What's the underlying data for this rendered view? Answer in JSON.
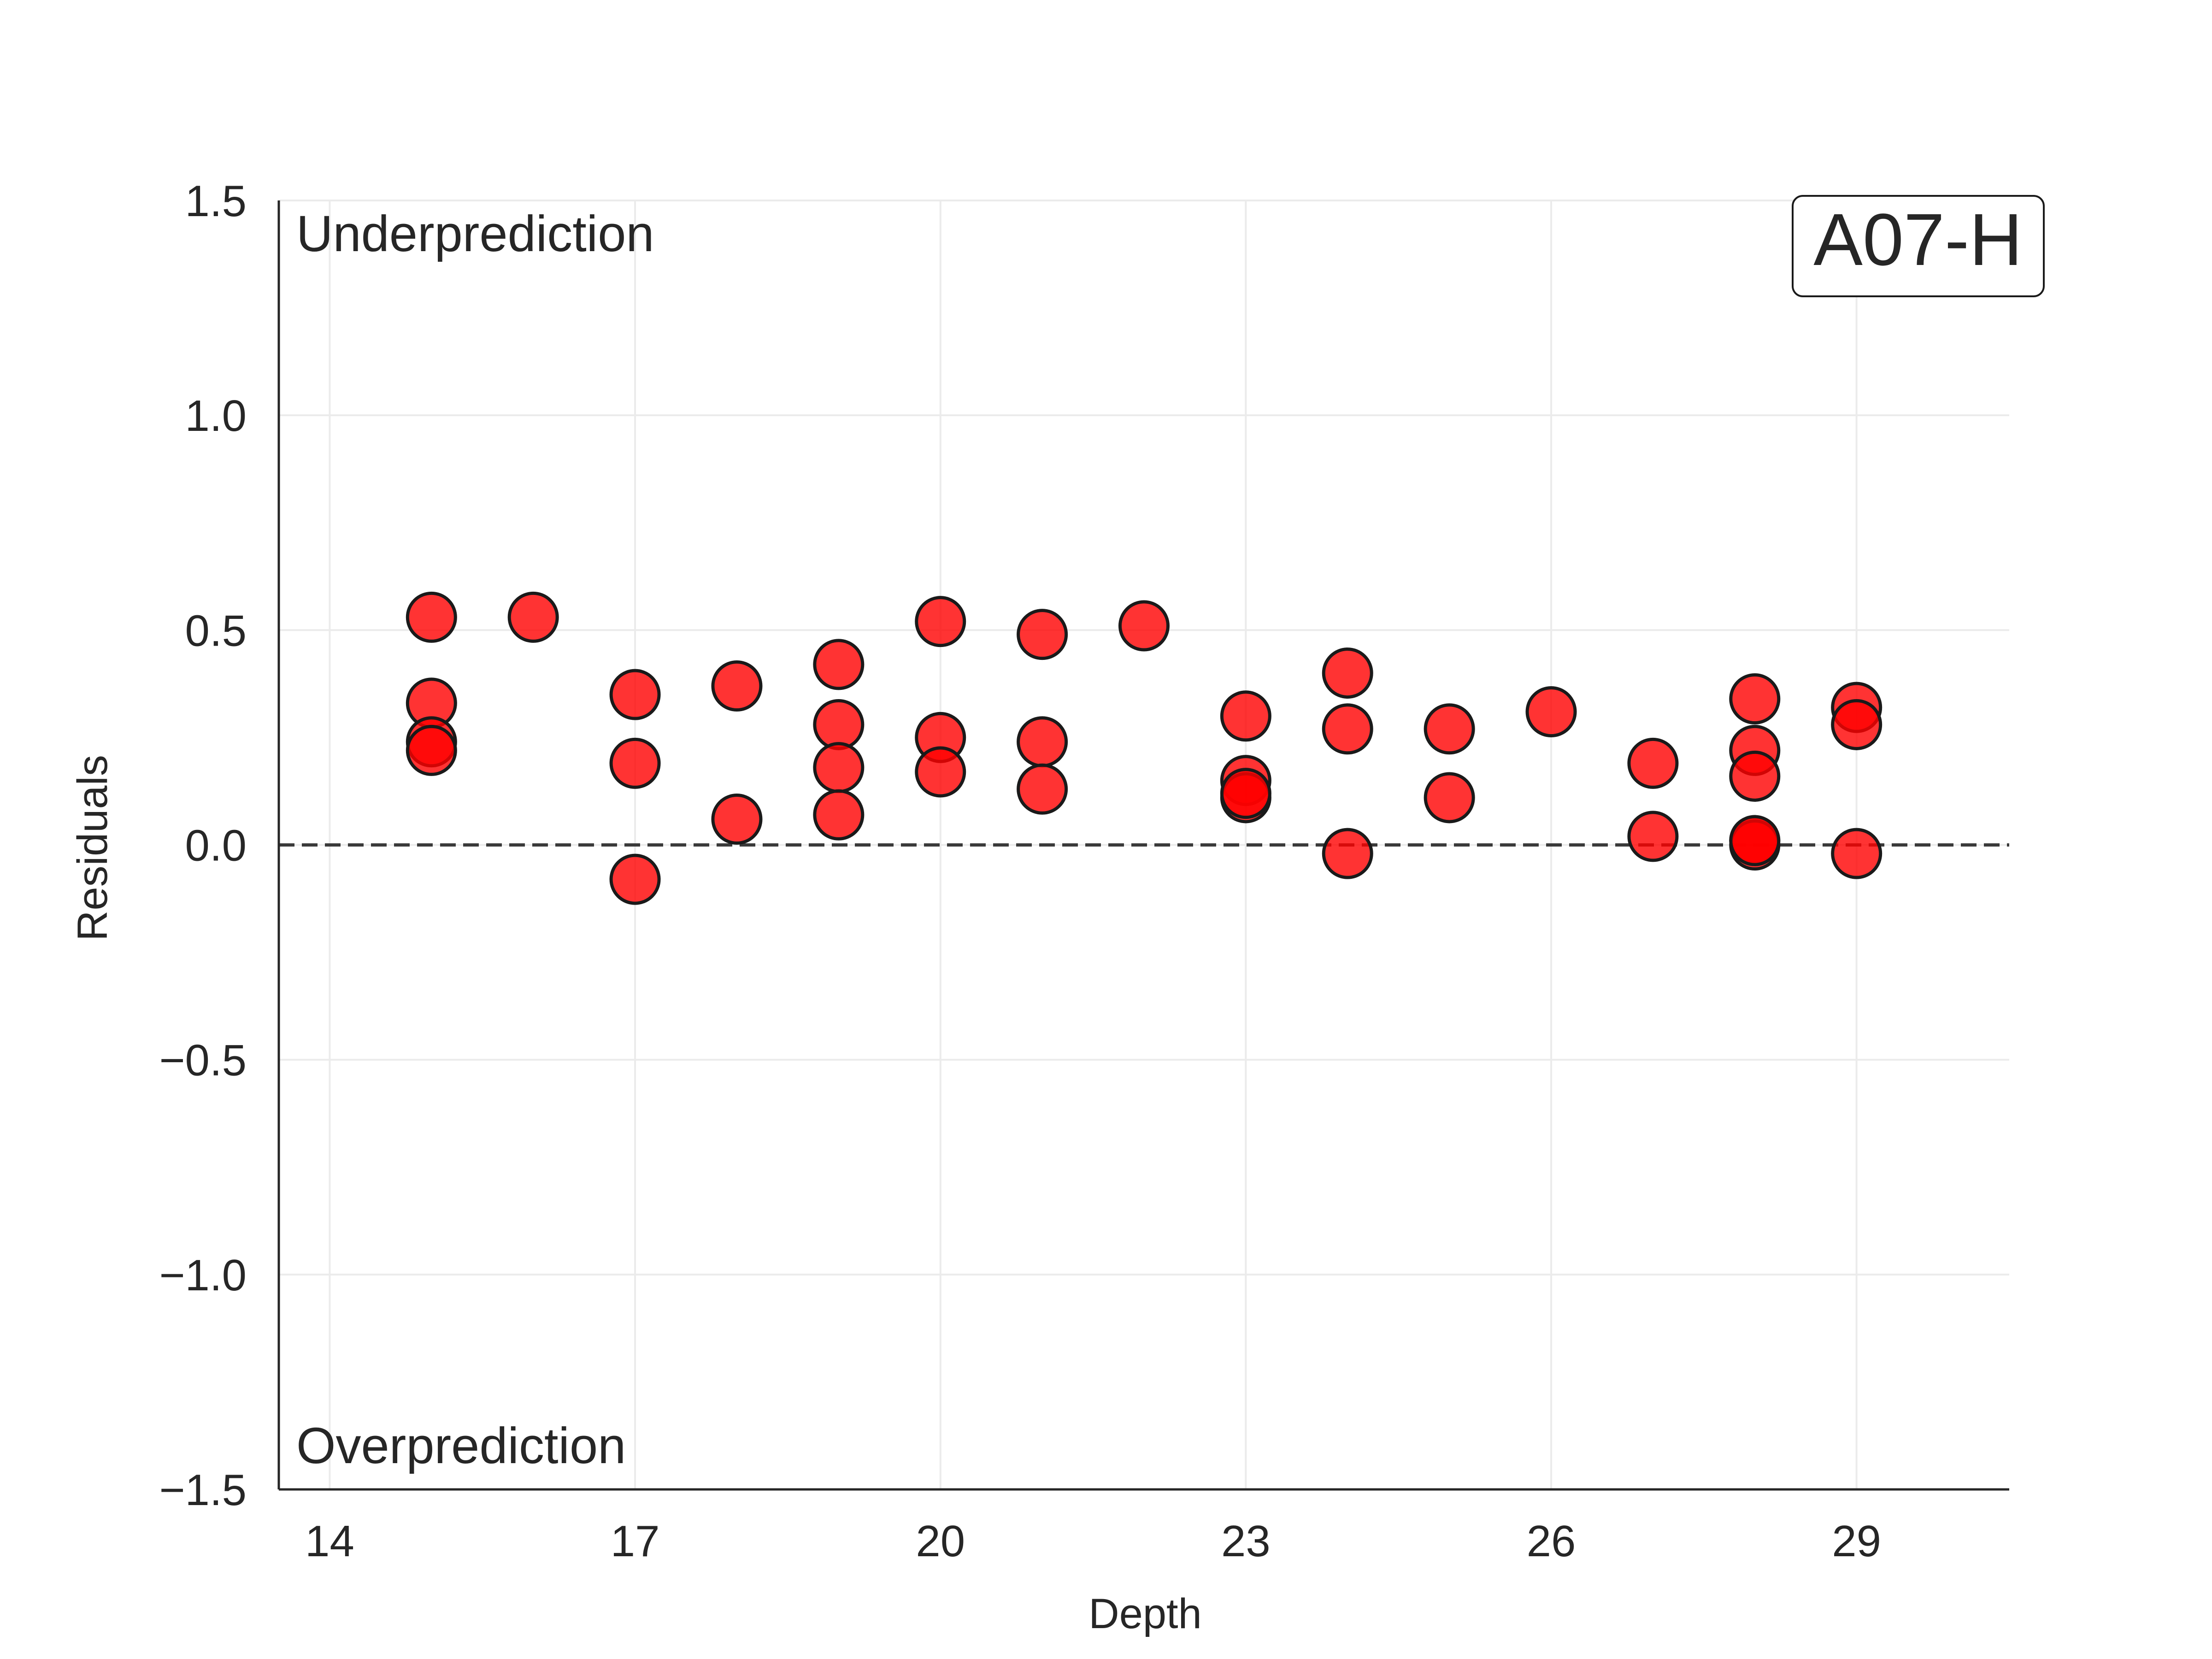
{
  "chart_data": {
    "type": "scatter",
    "title": "",
    "xlabel": "Depth",
    "ylabel": "Residuals",
    "xlim": [
      13.5,
      30.5
    ],
    "ylim": [
      -1.5,
      1.5
    ],
    "xticks": [
      14,
      17,
      20,
      23,
      26,
      29
    ],
    "yticks": [
      -1.5,
      -1.0,
      -0.5,
      0.0,
      0.5,
      1.0,
      1.5
    ],
    "xtick_labels": [
      "14",
      "17",
      "20",
      "23",
      "26",
      "29"
    ],
    "ytick_labels": [
      "−1.5",
      "−1.0",
      "−0.5",
      "0.0",
      "0.5",
      "1.0",
      "1.5"
    ],
    "grid": true,
    "reference_line": {
      "y": 0.0,
      "style": "dashed",
      "color": "#3a3a3a"
    },
    "annotations": {
      "top": "Underprediction",
      "bottom": "Overprediction",
      "panel": "A07-H"
    },
    "marker": {
      "fill": "#ff0000",
      "edge": "#1a1a1a",
      "opacity": 0.8
    },
    "series": [
      {
        "name": "Residuals",
        "points": [
          {
            "x": 15,
            "y": 0.53
          },
          {
            "x": 15,
            "y": 0.33
          },
          {
            "x": 15,
            "y": 0.24
          },
          {
            "x": 15,
            "y": 0.22
          },
          {
            "x": 16,
            "y": 0.53
          },
          {
            "x": 17,
            "y": 0.35
          },
          {
            "x": 17,
            "y": 0.19
          },
          {
            "x": 17,
            "y": -0.08
          },
          {
            "x": 18,
            "y": 0.37
          },
          {
            "x": 18,
            "y": 0.06
          },
          {
            "x": 19,
            "y": 0.42
          },
          {
            "x": 19,
            "y": 0.28
          },
          {
            "x": 19,
            "y": 0.18
          },
          {
            "x": 19,
            "y": 0.07
          },
          {
            "x": 20,
            "y": 0.52
          },
          {
            "x": 20,
            "y": 0.25
          },
          {
            "x": 20,
            "y": 0.17
          },
          {
            "x": 21,
            "y": 0.49
          },
          {
            "x": 21,
            "y": 0.24
          },
          {
            "x": 21,
            "y": 0.13
          },
          {
            "x": 22,
            "y": 0.51
          },
          {
            "x": 23,
            "y": 0.3
          },
          {
            "x": 23,
            "y": 0.15
          },
          {
            "x": 23,
            "y": 0.11
          },
          {
            "x": 23,
            "y": 0.12
          },
          {
            "x": 24,
            "y": 0.4
          },
          {
            "x": 24,
            "y": 0.27
          },
          {
            "x": 24,
            "y": -0.02
          },
          {
            "x": 25,
            "y": 0.27
          },
          {
            "x": 25,
            "y": 0.11
          },
          {
            "x": 26,
            "y": 0.31
          },
          {
            "x": 27,
            "y": 0.19
          },
          {
            "x": 27,
            "y": 0.02
          },
          {
            "x": 28,
            "y": 0.34
          },
          {
            "x": 28,
            "y": 0.22
          },
          {
            "x": 28,
            "y": 0.16
          },
          {
            "x": 28,
            "y": 0.01
          },
          {
            "x": 28,
            "y": 0.0
          },
          {
            "x": 28,
            "y": 0.01
          },
          {
            "x": 29,
            "y": 0.32
          },
          {
            "x": 29,
            "y": 0.28
          },
          {
            "x": 29,
            "y": -0.02
          }
        ]
      }
    ]
  }
}
